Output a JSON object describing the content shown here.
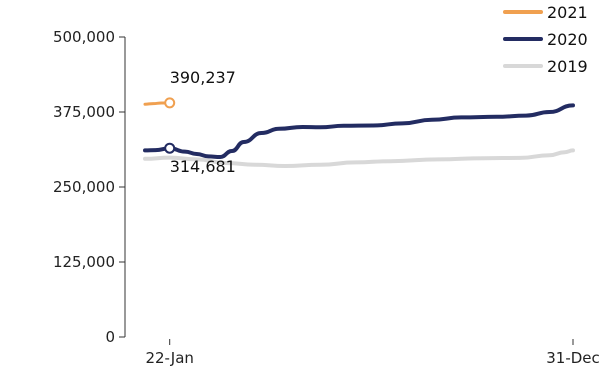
{
  "chart_data": {
    "type": "line",
    "ylim": [
      0,
      500000
    ],
    "yticks": [
      {
        "value": 0,
        "label": "0"
      },
      {
        "value": 125000,
        "label": "125,000"
      },
      {
        "value": 250000,
        "label": "250,000"
      },
      {
        "value": 375000,
        "label": "375,000"
      },
      {
        "value": 500000,
        "label": "500,000"
      }
    ],
    "x_domain_days": [
      1,
      365
    ],
    "xticks": [
      {
        "day": 22,
        "label": "22-Jan"
      },
      {
        "day": 365,
        "label": "31-Dec"
      }
    ],
    "legend_position": "top-right",
    "series": [
      {
        "name": "2021",
        "color": "#f0a050",
        "width": 3,
        "points": [
          [
            1,
            388000
          ],
          [
            8,
            389000
          ],
          [
            15,
            390000
          ],
          [
            22,
            390237
          ]
        ]
      },
      {
        "name": "2020",
        "color": "#232c62",
        "width": 4,
        "points": [
          [
            1,
            311000
          ],
          [
            10,
            311500
          ],
          [
            22,
            314681
          ],
          [
            35,
            309000
          ],
          [
            45,
            305000
          ],
          [
            55,
            301000
          ],
          [
            65,
            300000
          ],
          [
            75,
            310000
          ],
          [
            85,
            325000
          ],
          [
            100,
            340000
          ],
          [
            115,
            347000
          ],
          [
            135,
            350000
          ],
          [
            150,
            349500
          ],
          [
            170,
            352000
          ],
          [
            195,
            352500
          ],
          [
            220,
            356000
          ],
          [
            245,
            362000
          ],
          [
            270,
            366000
          ],
          [
            300,
            367000
          ],
          [
            325,
            369000
          ],
          [
            345,
            375000
          ],
          [
            365,
            386000
          ]
        ]
      },
      {
        "name": "2019",
        "color": "#d8d8d8",
        "width": 4,
        "points": [
          [
            1,
            297000
          ],
          [
            22,
            299000
          ],
          [
            45,
            296000
          ],
          [
            70,
            290000
          ],
          [
            95,
            287000
          ],
          [
            120,
            285000
          ],
          [
            150,
            287000
          ],
          [
            180,
            291000
          ],
          [
            210,
            293000
          ],
          [
            250,
            296000
          ],
          [
            290,
            298000
          ],
          [
            320,
            298500
          ],
          [
            345,
            303000
          ],
          [
            358,
            308000
          ],
          [
            365,
            311000
          ]
        ]
      }
    ],
    "annotations": [
      {
        "series": "2021",
        "day": 22,
        "value": 390237,
        "label": "390,237",
        "position": "above"
      },
      {
        "series": "2020",
        "day": 22,
        "value": 314681,
        "label": "314,681",
        "position": "below"
      }
    ]
  }
}
